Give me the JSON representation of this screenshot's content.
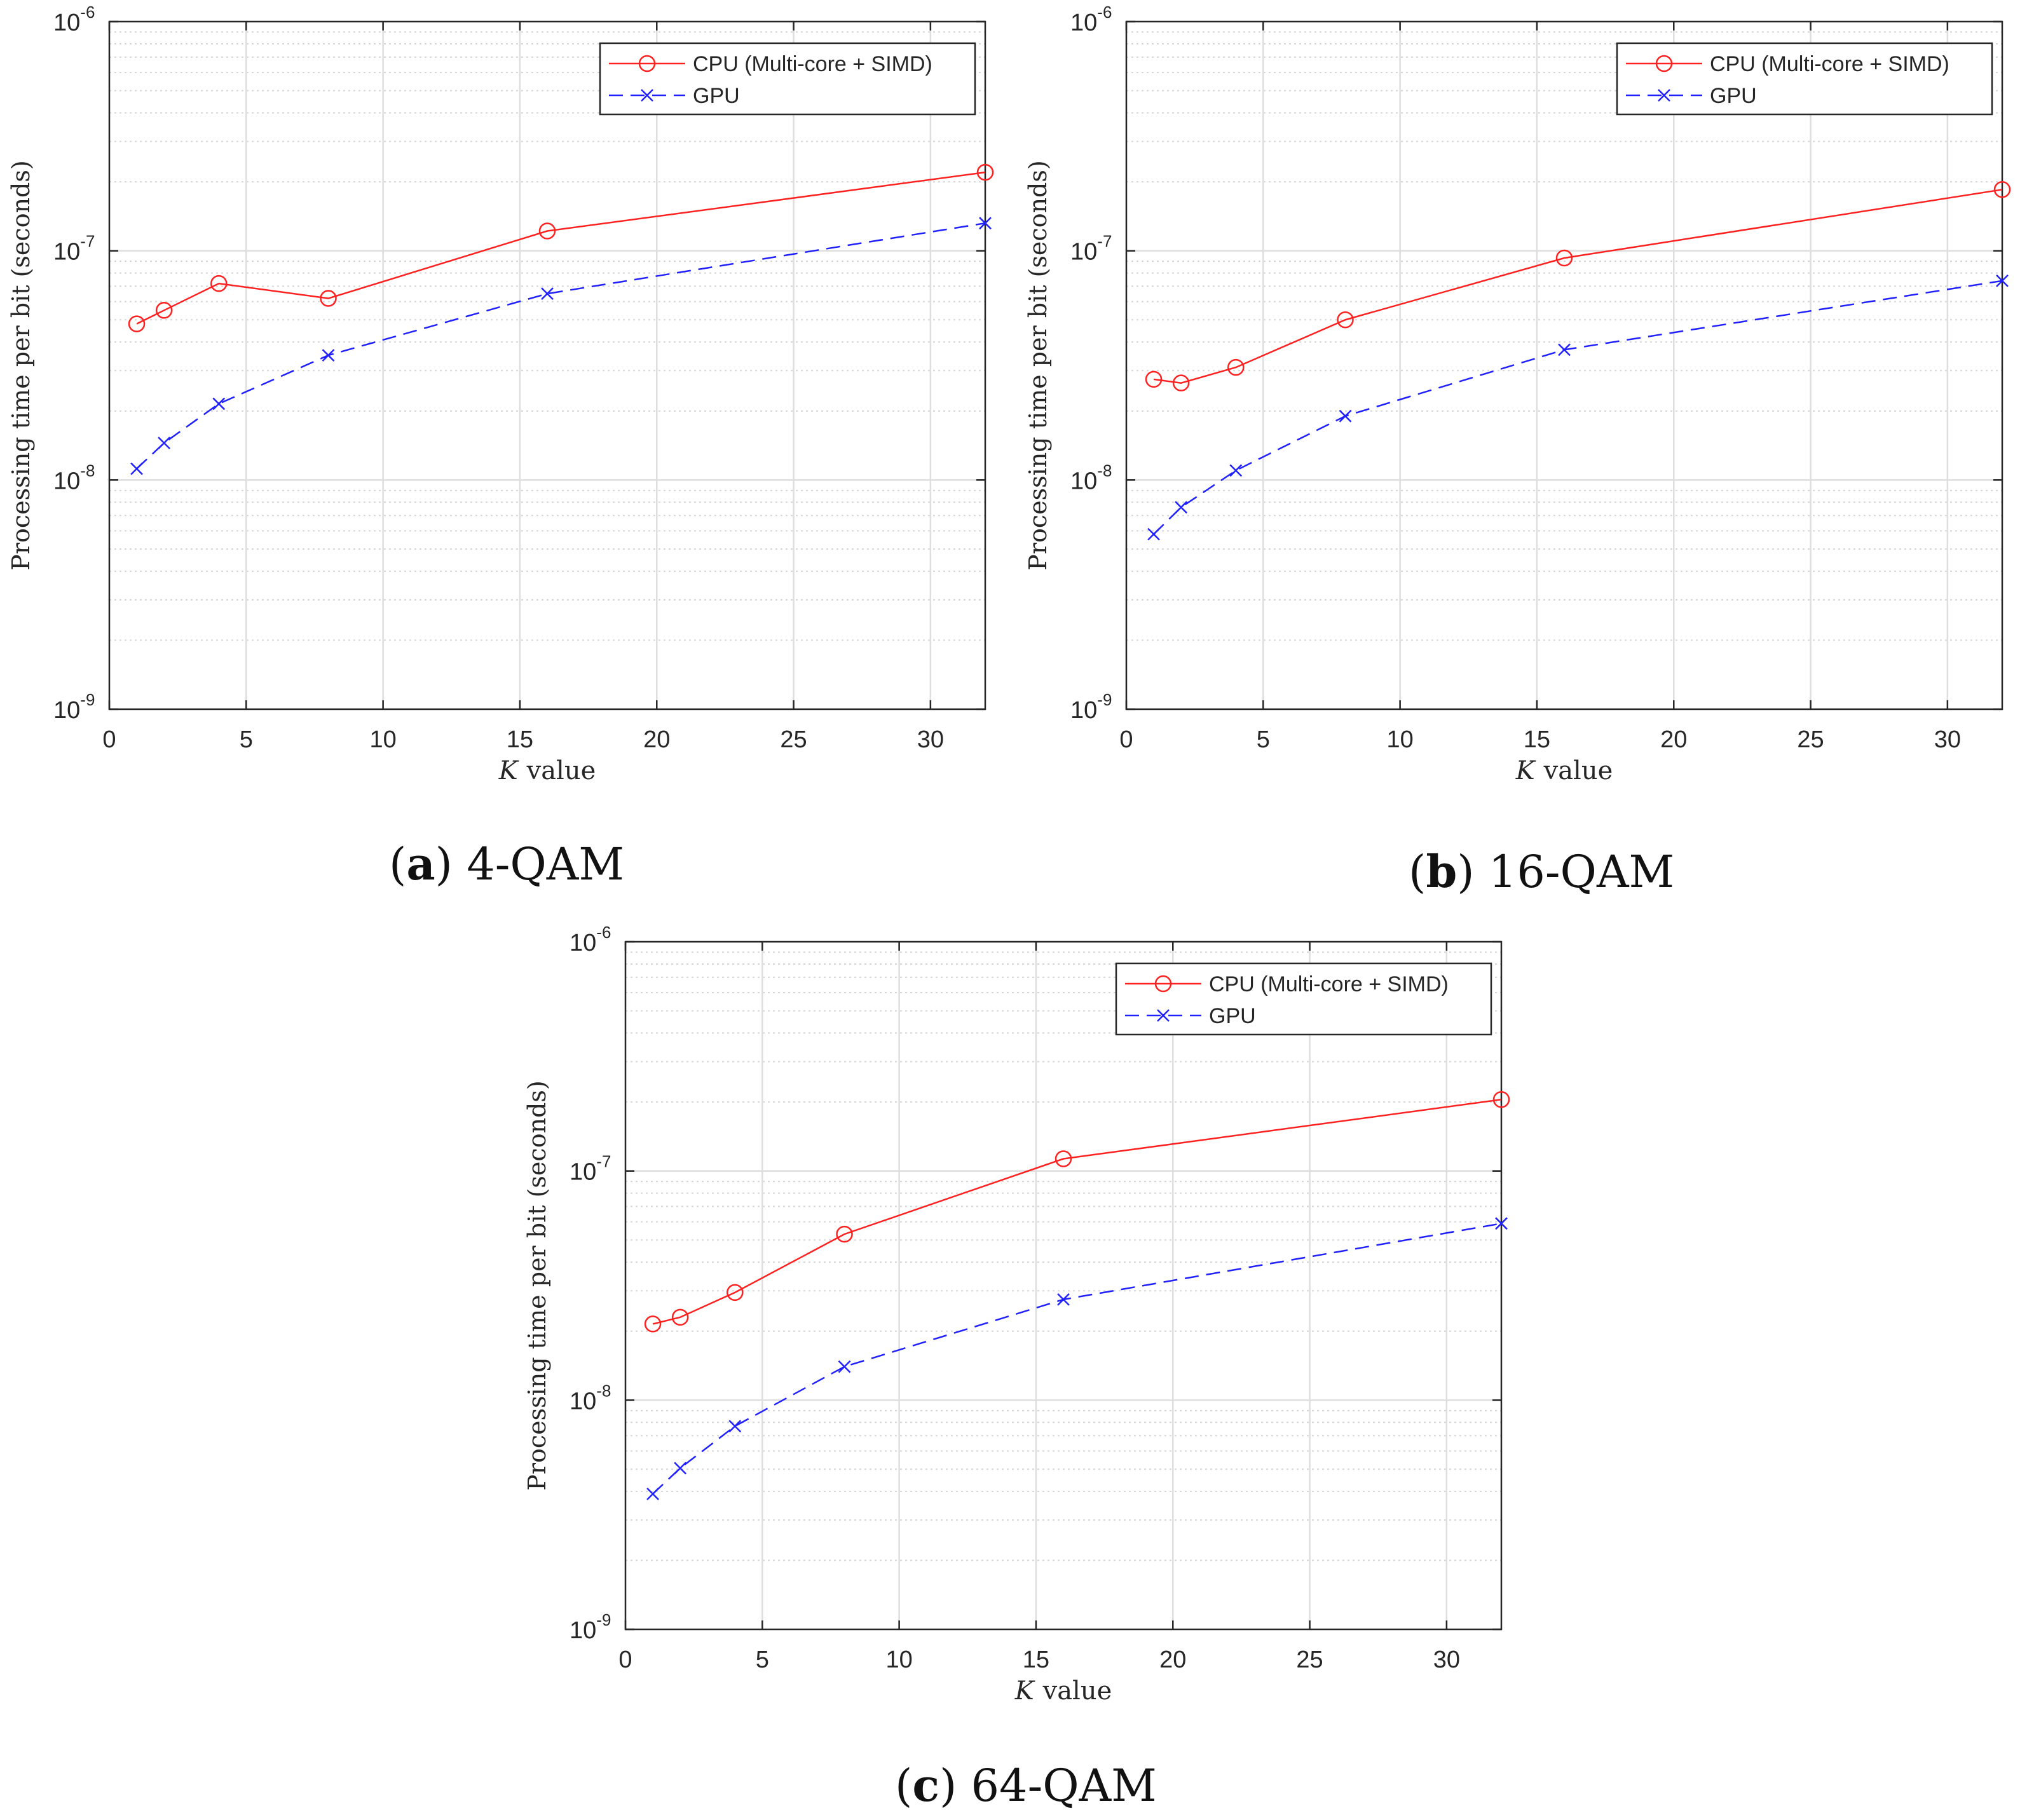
{
  "chart_data": [
    {
      "type": "line",
      "panel_label": "a",
      "caption": "4-QAM",
      "xlabel_var": "K",
      "xlabel_rest": "value",
      "ylabel": "Processing time per bit (seconds)",
      "xlim": [
        0,
        32
      ],
      "ylim": [
        1e-09,
        1e-06
      ],
      "yscale": "log",
      "grid": true,
      "legend_position": "top-right",
      "x_ticks": [
        "0",
        "5",
        "10",
        "15",
        "20",
        "25",
        "30"
      ],
      "y_ticks": [
        {
          "base": "10",
          "exp": "-9"
        },
        {
          "base": "10",
          "exp": "-8"
        },
        {
          "base": "10",
          "exp": "-7"
        },
        {
          "base": "10",
          "exp": "-6"
        }
      ],
      "x": [
        1,
        2,
        4,
        8,
        16,
        32
      ],
      "series": [
        {
          "name": "CPU (Multi-core + SIMD)",
          "color": "#ff2020",
          "style": "solid",
          "marker": "circle",
          "values": [
            4.8e-08,
            5.5e-08,
            7.2e-08,
            6.2e-08,
            1.22e-07,
            2.2e-07
          ]
        },
        {
          "name": "GPU",
          "color": "#2020ff",
          "style": "dashed",
          "marker": "x",
          "values": [
            1.12e-08,
            1.45e-08,
            2.15e-08,
            3.5e-08,
            6.5e-08,
            1.32e-07
          ]
        }
      ]
    },
    {
      "type": "line",
      "panel_label": "b",
      "caption": "16-QAM",
      "xlabel_var": "K",
      "xlabel_rest": "value",
      "ylabel": "Processing time per bit (seconds)",
      "xlim": [
        0,
        32
      ],
      "ylim": [
        1e-09,
        1e-06
      ],
      "yscale": "log",
      "grid": true,
      "legend_position": "top-right",
      "x_ticks": [
        "0",
        "5",
        "10",
        "15",
        "20",
        "25",
        "30"
      ],
      "y_ticks": [
        {
          "base": "10",
          "exp": "-9"
        },
        {
          "base": "10",
          "exp": "-8"
        },
        {
          "base": "10",
          "exp": "-7"
        },
        {
          "base": "10",
          "exp": "-6"
        }
      ],
      "x": [
        1,
        2,
        4,
        8,
        16,
        32
      ],
      "series": [
        {
          "name": "CPU (Multi-core + SIMD)",
          "color": "#ff2020",
          "style": "solid",
          "marker": "circle",
          "values": [
            2.75e-08,
            2.65e-08,
            3.1e-08,
            5e-08,
            9.3e-08,
            1.85e-07
          ]
        },
        {
          "name": "GPU",
          "color": "#2020ff",
          "style": "dashed",
          "marker": "x",
          "values": [
            5.8e-09,
            7.6e-09,
            1.1e-08,
            1.9e-08,
            3.7e-08,
            7.4e-08
          ]
        }
      ]
    },
    {
      "type": "line",
      "panel_label": "c",
      "caption": "64-QAM",
      "xlabel_var": "K",
      "xlabel_rest": "value",
      "ylabel": "Processing time per bit (seconds)",
      "xlim": [
        0,
        32
      ],
      "ylim": [
        1e-09,
        1e-06
      ],
      "yscale": "log",
      "grid": true,
      "legend_position": "top-right",
      "x_ticks": [
        "0",
        "5",
        "10",
        "15",
        "20",
        "25",
        "30"
      ],
      "y_ticks": [
        {
          "base": "10",
          "exp": "-9"
        },
        {
          "base": "10",
          "exp": "-8"
        },
        {
          "base": "10",
          "exp": "-7"
        },
        {
          "base": "10",
          "exp": "-6"
        }
      ],
      "x": [
        1,
        2,
        4,
        8,
        16,
        32
      ],
      "series": [
        {
          "name": "CPU (Multi-core + SIMD)",
          "color": "#ff2020",
          "style": "solid",
          "marker": "circle",
          "values": [
            2.15e-08,
            2.3e-08,
            2.95e-08,
            5.3e-08,
            1.13e-07,
            2.05e-07
          ]
        },
        {
          "name": "GPU",
          "color": "#2020ff",
          "style": "dashed",
          "marker": "x",
          "values": [
            3.9e-09,
            5.05e-09,
            7.7e-09,
            1.4e-08,
            2.75e-08,
            5.9e-08
          ]
        }
      ]
    }
  ]
}
